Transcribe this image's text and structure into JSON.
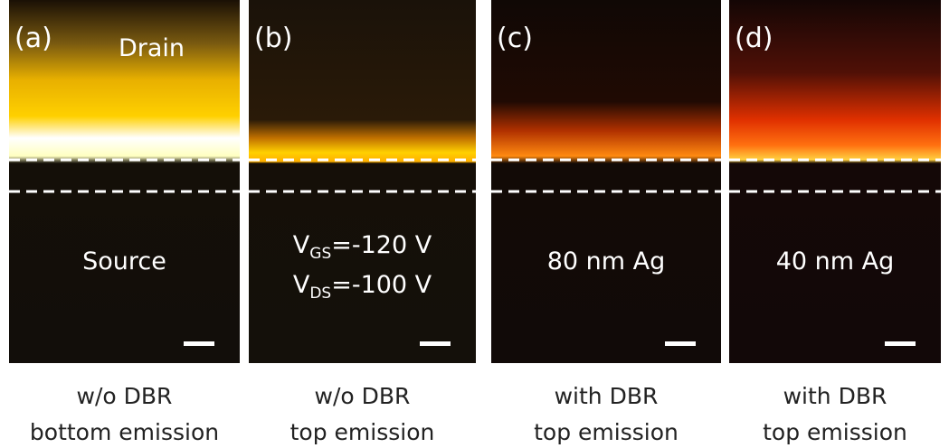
{
  "panels": [
    {
      "label": "(a)",
      "top_text": "Drain",
      "lines": [
        [
          "Source"
        ]
      ],
      "caption": [
        "w/o DBR",
        "bottom emission"
      ]
    },
    {
      "label": "(b)",
      "lines": [
        [
          "V",
          "GS",
          "=-120 V"
        ],
        [
          "V",
          "DS",
          "=-100 V"
        ]
      ],
      "caption": [
        "w/o DBR",
        "top emission"
      ]
    },
    {
      "label": "(c)",
      "lines": [
        [
          "80 nm Ag"
        ]
      ],
      "caption": [
        "with DBR",
        "top emission"
      ]
    },
    {
      "label": "(d)",
      "lines": [
        [
          "40 nm Ag"
        ]
      ],
      "caption": [
        "with DBR",
        "top emission"
      ]
    }
  ]
}
